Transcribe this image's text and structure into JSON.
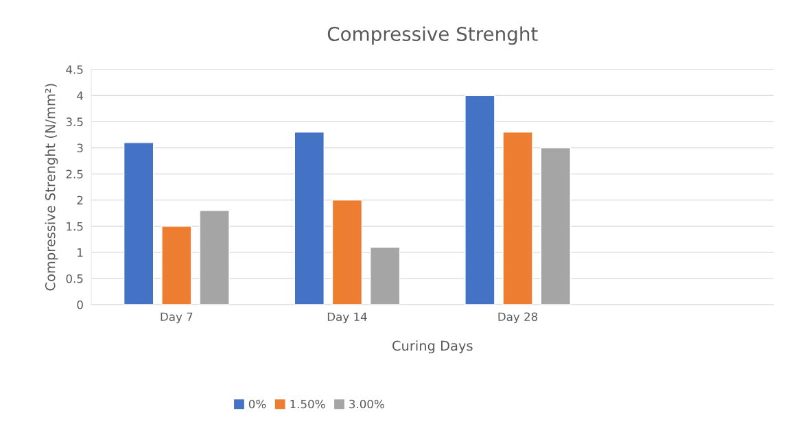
{
  "chart_data": {
    "type": "bar",
    "title": "Compressive Strenght",
    "xlabel": "Curing Days",
    "ylabel": "Compressive Strenght (N/mm²)",
    "categories": [
      "Day 7",
      "Day 14",
      "Day 28",
      null
    ],
    "series": [
      {
        "name": "0%",
        "color": "#4472c4",
        "values": [
          3.1,
          3.3,
          4.0,
          null
        ]
      },
      {
        "name": "1.50%",
        "color": "#ed7d31",
        "values": [
          1.5,
          2.0,
          3.3,
          null
        ]
      },
      {
        "name": "3.00%",
        "color": "#a5a5a5",
        "values": [
          1.8,
          1.1,
          3.0,
          null
        ]
      }
    ],
    "ylim": [
      0,
      4.5
    ],
    "yticks": [
      0,
      0.5,
      1,
      1.5,
      2,
      2.5,
      3,
      3.5,
      4,
      4.5
    ],
    "grid": "y",
    "legend": "bottom"
  }
}
